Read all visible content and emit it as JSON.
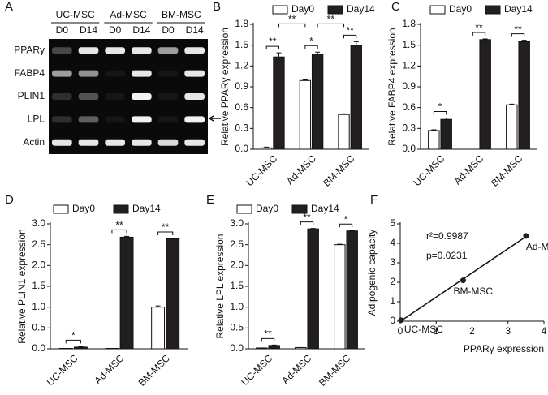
{
  "panel_labels": [
    "A",
    "B",
    "C",
    "D",
    "E",
    "F"
  ],
  "gel": {
    "groups": [
      "UC-MSC",
      "Ad-MSC",
      "BM-MSC"
    ],
    "lanes": [
      "D0",
      "D14",
      "D0",
      "D14",
      "D0",
      "D14"
    ],
    "genes": [
      "PPARγ",
      "FABP4",
      "PLIN1",
      "LPL",
      "Actin"
    ]
  },
  "chart_data": [
    {
      "type": "bar",
      "ylabel": "Relative PPARγ expression",
      "categories": [
        "UC-MSC",
        "Ad-MSC",
        "BM-MSC"
      ],
      "series": [
        {
          "name": "Day0",
          "color": "#ffffff",
          "values": [
            0.02,
            0.99,
            0.5
          ],
          "errors": [
            0.01,
            0.01,
            0.01
          ]
        },
        {
          "name": "Day14",
          "color": "#231f20",
          "values": [
            1.33,
            1.37,
            1.5
          ],
          "errors": [
            0.06,
            0.03,
            0.05
          ]
        }
      ],
      "ylim": [
        0,
        1.8
      ],
      "yticks": [
        {
          "value": 0,
          "label": "0.0"
        },
        0.3,
        0.6,
        0.9,
        1.2,
        1.5,
        1.8
      ],
      "annotations": [
        {
          "text": "**",
          "category": 0
        },
        {
          "text": "*",
          "category": 1
        },
        {
          "text": "**",
          "category": 2
        },
        {
          "text": "**",
          "between": [
            0,
            1
          ]
        },
        {
          "text": "**",
          "between": [
            1,
            2
          ]
        }
      ]
    },
    {
      "type": "bar",
      "ylabel": "Relative FABP4 expression",
      "categories": [
        "UC-MSC",
        "Ad-MSC",
        "BM-MSC"
      ],
      "series": [
        {
          "name": "Day0",
          "color": "#ffffff",
          "values": [
            0.27,
            0.0,
            0.64
          ],
          "errors": [
            0.01,
            0.0,
            0.01
          ]
        },
        {
          "name": "Day14",
          "color": "#231f20",
          "values": [
            0.43,
            1.58,
            1.55
          ],
          "errors": [
            0.02,
            0.01,
            0.02
          ]
        }
      ],
      "ylim": [
        0,
        1.8
      ],
      "yticks": [
        {
          "value": 0,
          "label": "0.0"
        },
        0.3,
        0.6,
        0.9,
        1.2,
        1.5,
        1.8
      ],
      "annotations": [
        {
          "text": "*",
          "category": 0
        },
        {
          "text": "**",
          "category": 1
        },
        {
          "text": "**",
          "category": 2
        }
      ]
    },
    {
      "type": "bar",
      "ylabel": "Relative PLIN1 expression",
      "categories": [
        "UC-MSC",
        "Ad-MSC",
        "BM-MSC"
      ],
      "series": [
        {
          "name": "Day0",
          "color": "#ffffff",
          "values": [
            0.01,
            0.01,
            1.0
          ],
          "errors": [
            0.0,
            0.0,
            0.03
          ]
        },
        {
          "name": "Day14",
          "color": "#231f20",
          "values": [
            0.04,
            2.68,
            2.64
          ],
          "errors": [
            0.01,
            0.02,
            0.01
          ]
        }
      ],
      "ylim": [
        0,
        3.0
      ],
      "yticks": [
        {
          "value": 0,
          "label": "0.0"
        },
        0.5,
        {
          "value": 1,
          "label": "1.0"
        },
        1.5,
        {
          "value": 2,
          "label": "2.0"
        },
        2.5,
        {
          "value": 3,
          "label": "3.0"
        }
      ],
      "annotations": [
        {
          "text": "*",
          "category": 0
        },
        {
          "text": "**",
          "category": 1
        },
        {
          "text": "**",
          "category": 2
        }
      ]
    },
    {
      "type": "bar",
      "ylabel": "Relative LPL expression",
      "categories": [
        "UC-MSC",
        "Ad-MSC",
        "BM-MSC"
      ],
      "series": [
        {
          "name": "Day0",
          "color": "#ffffff",
          "values": [
            0.02,
            0.03,
            2.5
          ],
          "errors": [
            0.0,
            0.0,
            0.01
          ]
        },
        {
          "name": "Day14",
          "color": "#231f20",
          "values": [
            0.08,
            2.88,
            2.83
          ],
          "errors": [
            0.01,
            0.01,
            0.01
          ]
        }
      ],
      "ylim": [
        0,
        3.0
      ],
      "yticks": [
        {
          "value": 0,
          "label": "0.0"
        },
        0.5,
        {
          "value": 1,
          "label": "1.0"
        },
        1.5,
        {
          "value": 2,
          "label": "2.0"
        },
        2.5,
        {
          "value": 3,
          "label": "3.0"
        }
      ],
      "annotations": [
        {
          "text": "**",
          "category": 0
        },
        {
          "text": "**",
          "category": 1
        },
        {
          "text": "*",
          "category": 2
        }
      ]
    },
    {
      "type": "scatter",
      "xlabel": "PPARγ expression",
      "ylabel": "Adipogenic capacity",
      "x": [
        0.02,
        3.5,
        1.75
      ],
      "y": [
        0.05,
        4.38,
        2.1
      ],
      "point_labels": [
        "UC-MSC",
        "Ad-MSC",
        "BM-MSC"
      ],
      "color": "#231f20",
      "xlim": [
        0,
        4
      ],
      "xticks": [
        0,
        1,
        2,
        3,
        4
      ],
      "ylim": [
        0,
        5
      ],
      "yticks": [
        0,
        1,
        2,
        3,
        4,
        5
      ],
      "annotations": [
        "r²=0.9987",
        "p=0.0231"
      ]
    }
  ]
}
